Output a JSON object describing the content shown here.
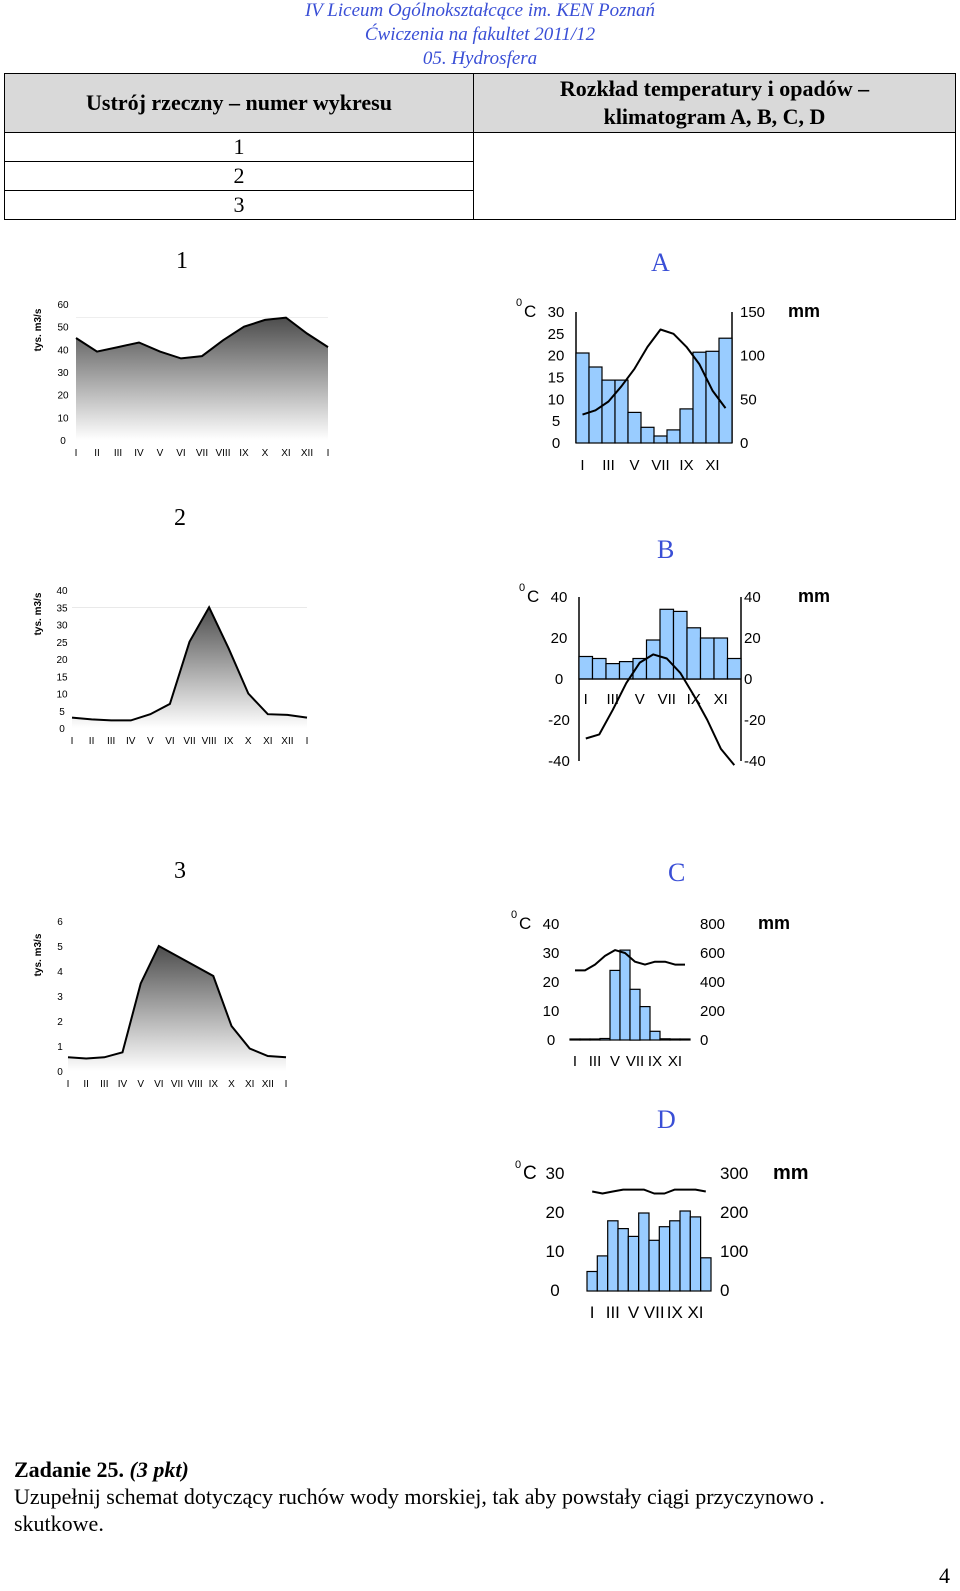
{
  "header": {
    "line1": "IV Liceum Ogólnokształcące im. KEN Poznań",
    "line2": "Ćwiczenia na fakultet 2011/12",
    "line3": "05. Hydrosfera"
  },
  "table": {
    "col1_header": "Ustrój rzeczny – numer wykresu",
    "col2_header_line1": "Rozkład temperatury i opadów –",
    "col2_header_line2": "klimatogram A, B, C, D",
    "rows": [
      "1",
      "2",
      "3"
    ]
  },
  "labels": {
    "river1": "1",
    "river2": "2",
    "river3": "3",
    "climA": "A",
    "climB": "B",
    "climC": "C",
    "climD": "D"
  },
  "task": {
    "title": "Zadanie 25.",
    "points": "(3 pkt)",
    "line1": "Uzupełnij schemat dotyczący ruchów wody morskiej, tak aby powstały ciągi przyczynowo .",
    "line2": "skutkowe."
  },
  "page_number": "4",
  "chart_data": [
    {
      "id": "river-1",
      "type": "area",
      "ylabel": "tys. m3/s",
      "ylim": [
        0,
        60
      ],
      "yticks": [
        "0",
        "10",
        "20",
        "30",
        "40",
        "50",
        "60"
      ],
      "categories": [
        "I",
        "II",
        "III",
        "IV",
        "V",
        "VI",
        "VII",
        "VIII",
        "IX",
        "X",
        "XI",
        "XII",
        "I"
      ],
      "values": [
        45,
        39,
        41,
        43,
        39,
        36,
        37,
        44,
        50,
        53,
        54,
        47,
        41
      ]
    },
    {
      "id": "river-2",
      "type": "area",
      "ylabel": "tys. m3/s",
      "ylim": [
        0,
        40
      ],
      "yticks": [
        "0",
        "5",
        "10",
        "15",
        "20",
        "25",
        "30",
        "35",
        "40"
      ],
      "categories": [
        "I",
        "II",
        "III",
        "IV",
        "V",
        "VI",
        "VII",
        "VIII",
        "IX",
        "X",
        "XI",
        "XII",
        "I"
      ],
      "values": [
        3,
        2.5,
        2.2,
        2.2,
        4,
        7,
        25,
        35,
        23,
        10,
        4,
        3.8,
        3
      ]
    },
    {
      "id": "river-3",
      "type": "area",
      "ylabel": "tys. m3/s",
      "ylim": [
        0,
        6
      ],
      "yticks": [
        "0",
        "1",
        "2",
        "3",
        "4",
        "5",
        "6"
      ],
      "categories": [
        "I",
        "II",
        "III",
        "IV",
        "V",
        "VI",
        "VII",
        "VIII",
        "IX",
        "X",
        "XI",
        "XII",
        "I"
      ],
      "values": [
        0.55,
        0.5,
        0.55,
        0.75,
        3.5,
        5,
        4.6,
        4.2,
        3.8,
        1.8,
        0.9,
        0.6,
        0.55
      ]
    },
    {
      "id": "climatogram-A",
      "type": "bar",
      "temp_unit": "C",
      "precip_unit": "mm",
      "temp_ticks": [
        "30",
        "25",
        "20",
        "15",
        "10",
        "5",
        "0"
      ],
      "temp_lim": [
        0,
        30
      ],
      "precip_ticks": [
        "150",
        "100",
        "50",
        "0"
      ],
      "precip_lim": [
        0,
        150
      ],
      "month_labels": [
        "I",
        "III",
        "V",
        "VII",
        "IX",
        "XI"
      ],
      "precip": [
        103,
        87,
        72,
        72,
        35,
        18,
        8,
        15,
        39,
        104,
        105,
        120
      ],
      "temp": [
        6.5,
        7.5,
        9.5,
        13,
        17,
        22,
        26,
        25,
        22,
        18,
        12,
        8
      ]
    },
    {
      "id": "climatogram-B",
      "type": "bar",
      "temp_unit": "C",
      "precip_unit": "mm",
      "temp_ticks": [
        "40",
        "20",
        "0",
        "-20",
        "-40"
      ],
      "temp_lim": [
        -40,
        40
      ],
      "precip_ticks": [
        "40",
        "20",
        "0",
        "-20",
        "-40"
      ],
      "precip_lim": [
        -40,
        40
      ],
      "month_labels": [
        "I",
        "III",
        "V",
        "VII",
        "IX",
        "XI"
      ],
      "precip": [
        11,
        10,
        7.5,
        8.5,
        10,
        19,
        34,
        33,
        25,
        20,
        20,
        10
      ],
      "temp": [
        -29,
        -27,
        -15,
        -2,
        8,
        12,
        10,
        3,
        -8,
        -20,
        -34,
        -42
      ]
    },
    {
      "id": "climatogram-C",
      "type": "bar",
      "temp_unit": "C",
      "precip_unit": "mm",
      "temp_ticks": [
        "40",
        "30",
        "20",
        "10",
        "0"
      ],
      "temp_lim": [
        0,
        40
      ],
      "precip_ticks": [
        "800",
        "600",
        "400",
        "200",
        "0"
      ],
      "precip_lim": [
        0,
        800
      ],
      "month_labels": [
        "I",
        "III",
        "V",
        "VII",
        "IX",
        "XI"
      ],
      "precip": [
        0,
        0,
        0,
        10,
        480,
        620,
        350,
        230,
        60,
        8,
        0,
        0
      ],
      "temp": [
        24,
        24,
        26,
        29,
        31,
        30,
        27,
        26,
        27,
        27,
        26,
        26
      ]
    },
    {
      "id": "climatogram-D",
      "type": "bar",
      "temp_unit": "C",
      "precip_unit": "mm",
      "temp_ticks": [
        "30",
        "20",
        "10",
        "0"
      ],
      "temp_lim": [
        0,
        30
      ],
      "precip_ticks": [
        "300",
        "200",
        "100",
        "0"
      ],
      "precip_lim": [
        0,
        300
      ],
      "month_labels": [
        "I",
        "III",
        "V",
        "VII",
        "IX",
        "XI"
      ],
      "precip": [
        50,
        90,
        180,
        160,
        140,
        200,
        130,
        165,
        180,
        205,
        190,
        85
      ],
      "temp": [
        25.5,
        25,
        25.5,
        26,
        26,
        26,
        25,
        25,
        26,
        26,
        26,
        25.5
      ]
    }
  ]
}
